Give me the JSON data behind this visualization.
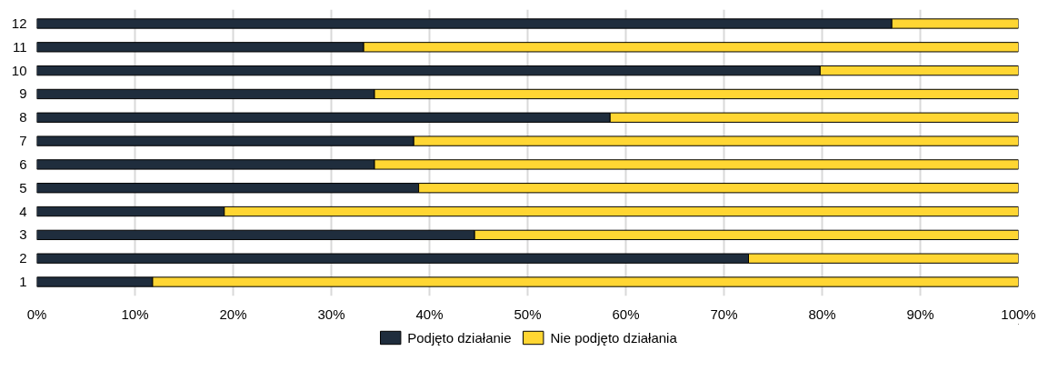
{
  "chart_data": {
    "type": "bar",
    "orientation": "horizontal",
    "stacked": true,
    "categories": [
      "12",
      "11",
      "10",
      "9",
      "8",
      "7",
      "6",
      "5",
      "4",
      "3",
      "2",
      "1"
    ],
    "series": [
      {
        "name": "Podjęto działanie",
        "color": "#1f2d3d",
        "values": [
          87.1,
          33.3,
          79.8,
          34.4,
          58.4,
          38.4,
          34.4,
          38.9,
          19.1,
          44.6,
          72.5,
          11.8
        ]
      },
      {
        "name": "Nie podjęto działania",
        "color": "#ffd633",
        "values": [
          12.9,
          66.7,
          20.2,
          65.6,
          41.6,
          61.6,
          65.6,
          61.1,
          80.9,
          55.4,
          27.5,
          88.2
        ]
      }
    ],
    "xlim": [
      0,
      100
    ],
    "xticks": [
      {
        "value": 0,
        "label": "0%"
      },
      {
        "value": 10,
        "label": "10%"
      },
      {
        "value": 20,
        "label": "20%"
      },
      {
        "value": 30,
        "label": "30%"
      },
      {
        "value": 40,
        "label": "40%"
      },
      {
        "value": 50,
        "label": "50%"
      },
      {
        "value": 60,
        "label": "60%"
      },
      {
        "value": 70,
        "label": "70%"
      },
      {
        "value": 80,
        "label": "80%"
      },
      {
        "value": 90,
        "label": "90%"
      },
      {
        "value": 100,
        "label": "100%"
      }
    ],
    "grid": "x",
    "legend": "bottom"
  }
}
